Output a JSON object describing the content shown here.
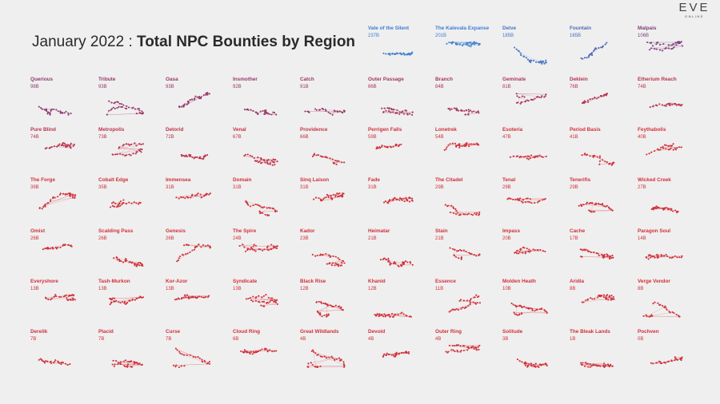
{
  "title": {
    "date": "January 2022",
    "separator": ":",
    "main": "Total NPC Bounties by Region"
  },
  "logo": {
    "mark": "EVE",
    "sub": "ONLINE"
  },
  "chart_data": {
    "type": "small-multiples",
    "unit": "B",
    "sort": "descending by value",
    "color_scale": {
      "high": "#3d7fd1",
      "mid": "#7a3e82",
      "low": "#d2303a"
    },
    "regions": [
      {
        "name": "Vale of the Silent",
        "value": 237
      },
      {
        "name": "The Kalevala Expanse",
        "value": 201
      },
      {
        "name": "Delve",
        "value": 185
      },
      {
        "name": "Fountain",
        "value": 165
      },
      {
        "name": "Malpais",
        "value": 106
      },
      {
        "name": "Querious",
        "value": 98
      },
      {
        "name": "Tribute",
        "value": 93
      },
      {
        "name": "Oasa",
        "value": 93
      },
      {
        "name": "Insmother",
        "value": 92
      },
      {
        "name": "Catch",
        "value": 91
      },
      {
        "name": "Outer Passage",
        "value": 86
      },
      {
        "name": "Branch",
        "value": 84
      },
      {
        "name": "Geminate",
        "value": 81
      },
      {
        "name": "Deklein",
        "value": 76
      },
      {
        "name": "Etherium Reach",
        "value": 74
      },
      {
        "name": "Pure Blind",
        "value": 74
      },
      {
        "name": "Metropolis",
        "value": 73
      },
      {
        "name": "Detorid",
        "value": 72
      },
      {
        "name": "Venal",
        "value": 67
      },
      {
        "name": "Providence",
        "value": 66
      },
      {
        "name": "Perrigen Falls",
        "value": 59
      },
      {
        "name": "Lonetrek",
        "value": 54
      },
      {
        "name": "Esoteria",
        "value": 47
      },
      {
        "name": "Period Basis",
        "value": 41
      },
      {
        "name": "Feythabolis",
        "value": 40
      },
      {
        "name": "The Forge",
        "value": 39
      },
      {
        "name": "Cobalt Edge",
        "value": 35
      },
      {
        "name": "Immensea",
        "value": 31
      },
      {
        "name": "Domain",
        "value": 31
      },
      {
        "name": "Sinq Laison",
        "value": 31
      },
      {
        "name": "Fade",
        "value": 31
      },
      {
        "name": "The Citadel",
        "value": 29
      },
      {
        "name": "Tenal",
        "value": 29
      },
      {
        "name": "Tenerifis",
        "value": 29
      },
      {
        "name": "Wicked Creek",
        "value": 27
      },
      {
        "name": "Omist",
        "value": 26
      },
      {
        "name": "Scalding Pass",
        "value": 26
      },
      {
        "name": "Genesis",
        "value": 26
      },
      {
        "name": "The Spire",
        "value": 24
      },
      {
        "name": "Kador",
        "value": 23
      },
      {
        "name": "Heimatar",
        "value": 21
      },
      {
        "name": "Stain",
        "value": 21
      },
      {
        "name": "Impass",
        "value": 20
      },
      {
        "name": "Cache",
        "value": 17
      },
      {
        "name": "Paragon Soul",
        "value": 14
      },
      {
        "name": "Everyshore",
        "value": 13
      },
      {
        "name": "Tash-Murkon",
        "value": 13
      },
      {
        "name": "Kor-Azor",
        "value": 13
      },
      {
        "name": "Syndicate",
        "value": 13
      },
      {
        "name": "Black Rise",
        "value": 12
      },
      {
        "name": "Khanid",
        "value": 12
      },
      {
        "name": "Essence",
        "value": 11
      },
      {
        "name": "Molden Heath",
        "value": 10
      },
      {
        "name": "Aridia",
        "value": 8
      },
      {
        "name": "Verge Vendor",
        "value": 8
      },
      {
        "name": "Derelik",
        "value": 7
      },
      {
        "name": "Placid",
        "value": 7
      },
      {
        "name": "Curse",
        "value": 7
      },
      {
        "name": "Cloud Ring",
        "value": 6
      },
      {
        "name": "Great Wildlands",
        "value": 4
      },
      {
        "name": "Devoid",
        "value": 4
      },
      {
        "name": "Outer Ring",
        "value": 4
      },
      {
        "name": "Solitude",
        "value": 3
      },
      {
        "name": "The Bleak Lands",
        "value": 1
      },
      {
        "name": "Pochven",
        "value": 0
      }
    ]
  }
}
